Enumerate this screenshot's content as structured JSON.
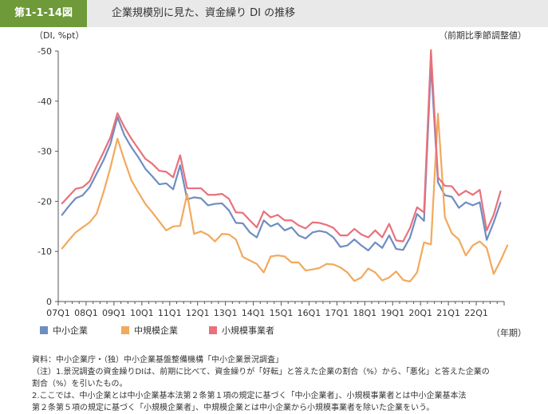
{
  "figure": {
    "number": "第1-1-14図",
    "title": "企業規模別に見た、資金繰り DI の推移"
  },
  "chart_data": {
    "type": "line",
    "ylabel": "（DI, %pt）",
    "xlabel": "（年期）",
    "note_right": "（前期比季節調整値）",
    "ylim": [
      -50,
      0
    ],
    "yticks": [
      0,
      -10,
      -20,
      -30,
      -40,
      -50
    ],
    "xticks": [
      "07Q1",
      "08Q1",
      "09Q1",
      "10Q1",
      "11Q1",
      "12Q1",
      "13Q1",
      "14Q1",
      "15Q1",
      "16Q1",
      "17Q1",
      "18Q1",
      "19Q1",
      "20Q1",
      "21Q1",
      "22Q1"
    ],
    "x_start": "07Q1",
    "x_end": "22Q4",
    "series": [
      {
        "name": "中小企業",
        "color": "#6f8dc2",
        "values": [
          -17.2,
          -19,
          -20.6,
          -21.2,
          -22.8,
          -25.5,
          -28.2,
          -31.5,
          -36.8,
          -33.2,
          -30.8,
          -28.8,
          -26.5,
          -25,
          -23.4,
          -23.6,
          -22.4,
          -27.2,
          -20.4,
          -20.8,
          -20.6,
          -19.2,
          -19.5,
          -19.6,
          -18.2,
          -15.7,
          -15.6,
          -13.8,
          -12.8,
          -16.2,
          -15,
          -15.6,
          -14.2,
          -14.8,
          -13.2,
          -12.6,
          -13.8,
          -14.1,
          -13.8,
          -12.8,
          -10.9,
          -11.2,
          -12.4,
          -11.2,
          -10.2,
          -11.8,
          -10.7,
          -13.2,
          -10.5,
          -10.3,
          -12.8,
          -17.5,
          -16.1,
          -47.5,
          -23.8,
          -21.2,
          -20.9,
          -18.7,
          -19.8,
          -19.2,
          -19.8,
          -12.3,
          -15.8,
          -19.8
        ]
      },
      {
        "name": "中規模企業",
        "color": "#f2a95d",
        "values": [
          -10.5,
          -12.2,
          -13.8,
          -14.8,
          -15.8,
          -17.5,
          -21.8,
          -26.8,
          -32.5,
          -28.2,
          -24.2,
          -21.8,
          -19.5,
          -17.8,
          -16,
          -14.2,
          -15,
          -15.1,
          -21.5,
          -13.5,
          -14,
          -13.3,
          -12,
          -13.5,
          -13.4,
          -12.4,
          -8.9,
          -8.2,
          -7.5,
          -5.8,
          -9,
          -9.2,
          -9,
          -7.8,
          -7.8,
          -6.2,
          -6.4,
          -6.7,
          -7.5,
          -7.4,
          -6.8,
          -5.8,
          -4.1,
          -4.8,
          -6.6,
          -5.8,
          -4.2,
          -4.8,
          -6,
          -4.3,
          -4,
          -5.8,
          -11.8,
          -11.4,
          -37.5,
          -16.8,
          -13.6,
          -12.4,
          -9.2,
          -11.2,
          -12,
          -10.7,
          -5.5,
          -8.2,
          -11.3
        ]
      },
      {
        "name": "小規模事業者",
        "color": "#e8717c",
        "values": [
          -19.5,
          -21,
          -22.5,
          -22.8,
          -24,
          -27,
          -29.8,
          -32.8,
          -37.6,
          -34.8,
          -32.5,
          -30.5,
          -28.5,
          -27.5,
          -26.1,
          -25.9,
          -24.8,
          -29.2,
          -22.6,
          -22.6,
          -22.6,
          -21.3,
          -21.3,
          -21.5,
          -20.5,
          -17.8,
          -17.7,
          -16.2,
          -14.8,
          -18,
          -16.8,
          -17.3,
          -16.2,
          -16.2,
          -15.2,
          -14.6,
          -15.8,
          -15.7,
          -15.3,
          -14.7,
          -13.2,
          -13.2,
          -14.5,
          -13.4,
          -12.8,
          -14.2,
          -12.8,
          -15.5,
          -12.2,
          -12,
          -14.7,
          -18.8,
          -17.8,
          -50.2,
          -24.8,
          -23.1,
          -23,
          -21.2,
          -22.1,
          -21.3,
          -22.3,
          -14.2,
          -17.3,
          -22.1
        ]
      }
    ]
  },
  "notes": {
    "source": "資料：中小企業庁・（独）中小企業基盤整備機構「中小企業景況調査」",
    "note1_a": "（注）1.景況調査の資金繰りDIは、前期に比べて、資金繰りが「好転」と答えた企業の割合（%）から、「悪化」と答えた企業の",
    "note1_b": "割合（%）を引いたもの。",
    "note2_a": "2.ここでは、中小企業とは中小企業基本法第２条第１項の規定に基づく「中小企業者」、小規模事業者とは中小企業基本法",
    "note2_b": "第２条第５項の規定に基づく「小規模企業者」、中規模企業とは中小企業から小規模事業者を除いた企業をいう。"
  }
}
